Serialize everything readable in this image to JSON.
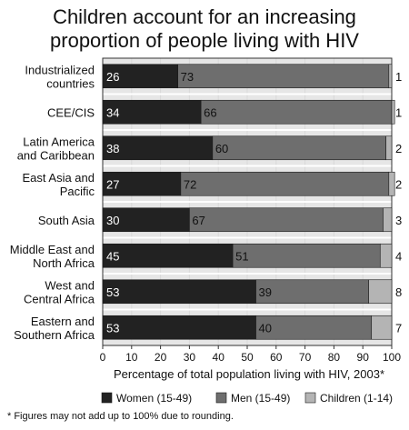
{
  "chart_data": {
    "type": "bar",
    "stacked": true,
    "orientation": "horizontal",
    "title": [
      "Children account for an increasing",
      "proportion of people living with HIV"
    ],
    "categories": [
      [
        "Industrialized",
        "countries"
      ],
      [
        "CEE/CIS"
      ],
      [
        "Latin America",
        "and Caribbean"
      ],
      [
        "East Asia and",
        "Pacific"
      ],
      [
        "South Asia"
      ],
      [
        "Middle East and",
        "North Africa"
      ],
      [
        "West and",
        "Central Africa"
      ],
      [
        "Eastern and",
        "Southern Africa"
      ]
    ],
    "series": [
      {
        "name": "Women (15-49)",
        "color": "#222222",
        "label_color": "#ffffff",
        "values": [
          26,
          34,
          38,
          27,
          30,
          45,
          53,
          53
        ]
      },
      {
        "name": "Men (15-49)",
        "color": "#6e6e6e",
        "label_color": "#111111",
        "values": [
          73,
          66,
          60,
          72,
          67,
          51,
          39,
          40
        ]
      },
      {
        "name": "Children (1-14)",
        "color": "#b4b4b4",
        "label_color": "#111111",
        "values": [
          1,
          1,
          2,
          2,
          3,
          4,
          8,
          7
        ]
      }
    ],
    "xlabel": "Percentage of total population living with HIV, 2003*",
    "xlim": [
      0,
      100
    ],
    "xticks": [
      0,
      10,
      20,
      30,
      40,
      50,
      60,
      70,
      80,
      90,
      100
    ],
    "legend_position": "bottom",
    "footnote": "* Figures may not add up to 100% due to rounding."
  }
}
